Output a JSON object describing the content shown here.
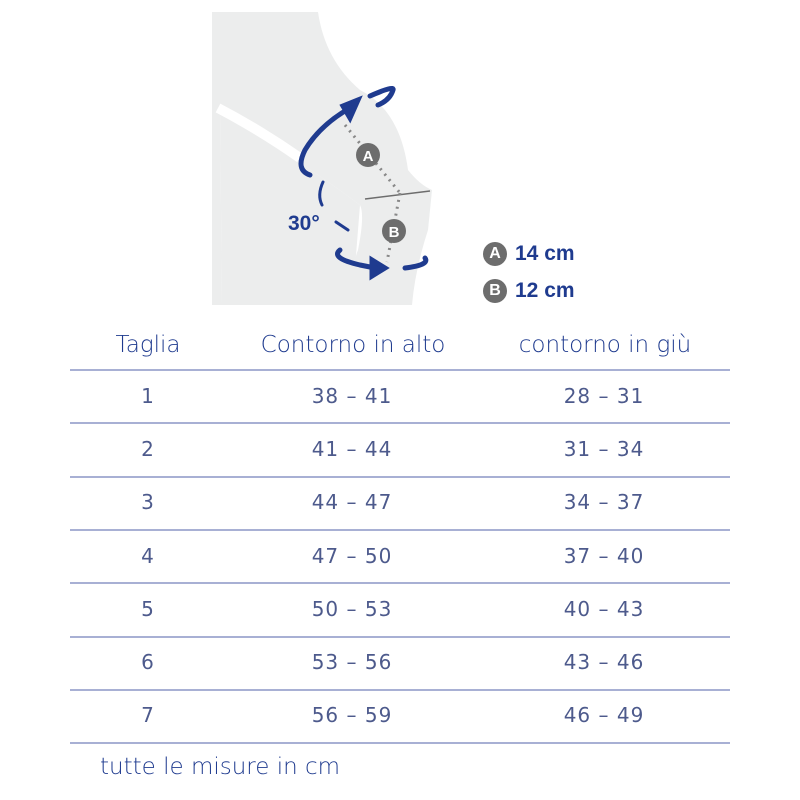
{
  "illustration": {
    "angle_label": "30°",
    "marker_a": "A",
    "marker_b": "B",
    "accent_color": "#1f3b8f"
  },
  "legend": [
    {
      "marker": "A",
      "value": "14 cm"
    },
    {
      "marker": "B",
      "value": "12 cm"
    }
  ],
  "table": {
    "headers": [
      "Taglia",
      "Contorno in alto",
      "contorno in giù"
    ],
    "rows": [
      [
        "1",
        "38 – 41",
        "28 – 31"
      ],
      [
        "2",
        "41 – 44",
        "31 – 34"
      ],
      [
        "3",
        "44 – 47",
        "34 – 37"
      ],
      [
        "4",
        "47 – 50",
        "37 – 40"
      ],
      [
        "5",
        "50 – 53",
        "40 – 43"
      ],
      [
        "6",
        "53 – 56",
        "43 – 46"
      ],
      [
        "7",
        "56 – 59",
        "46 – 49"
      ]
    ]
  },
  "footnote": "tutte le misure in cm"
}
